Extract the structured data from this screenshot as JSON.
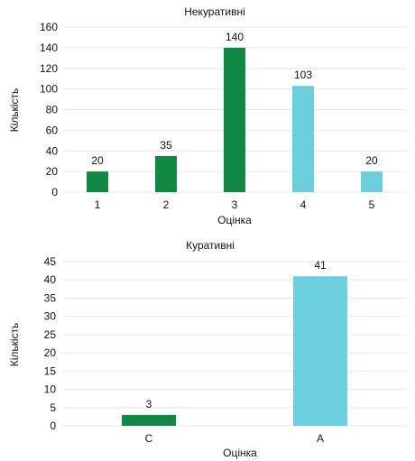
{
  "chart_data": [
    {
      "type": "bar",
      "title": "Некуративні",
      "xlabel": "Оцінка",
      "ylabel": "Кількість",
      "categories": [
        "1",
        "2",
        "3",
        "4",
        "5"
      ],
      "values": [
        20,
        35,
        140,
        103,
        20
      ],
      "data_labels": [
        "20",
        "35",
        "140",
        "103",
        "20"
      ],
      "bar_colors": [
        "#118844",
        "#118844",
        "#118844",
        "#6dcfdd",
        "#6dcfdd"
      ],
      "ylim": [
        0,
        160
      ],
      "yticks": [
        0,
        20,
        40,
        60,
        80,
        100,
        120,
        140,
        160
      ],
      "yticks_labels": [
        "0",
        "20",
        "40",
        "60",
        "80",
        "100",
        "120",
        "140",
        "160"
      ],
      "grid": true
    },
    {
      "type": "bar",
      "title": "Куративні",
      "xlabel": "Оцінка",
      "ylabel": "Кількість",
      "categories": [
        "C",
        "A"
      ],
      "values": [
        3,
        41
      ],
      "data_labels": [
        "3",
        "41"
      ],
      "bar_colors": [
        "#118844",
        "#6dcfdd"
      ],
      "ylim": [
        0,
        45
      ],
      "yticks": [
        0,
        5,
        10,
        15,
        20,
        25,
        30,
        35,
        40,
        45
      ],
      "yticks_labels": [
        "0",
        "5",
        "10",
        "15",
        "20",
        "25",
        "30",
        "35",
        "40",
        "45"
      ],
      "grid": true
    }
  ]
}
